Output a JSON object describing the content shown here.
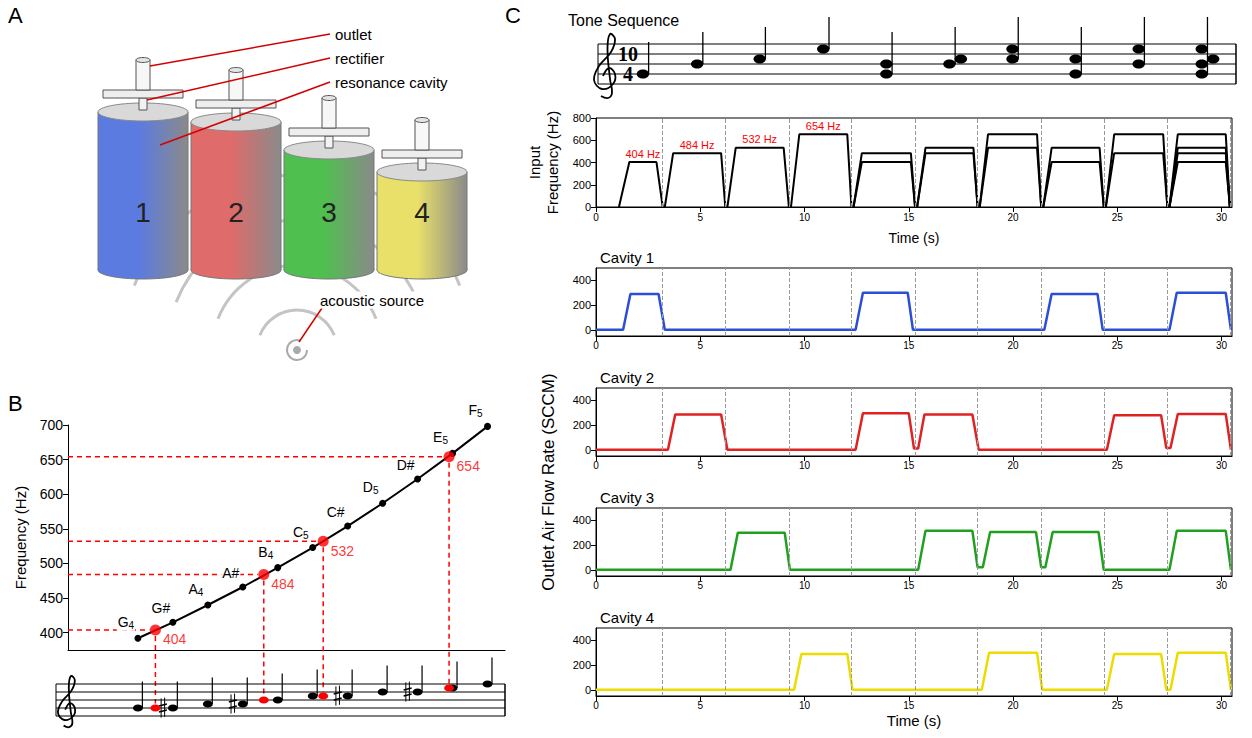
{
  "diagram": {
    "panel": "A",
    "cavities": [
      {
        "label": "1",
        "color": "#5b7be0"
      },
      {
        "label": "2",
        "color": "#e06b6b"
      },
      {
        "label": "3",
        "color": "#4fbf4f"
      },
      {
        "label": "4",
        "color": "#e9e06a"
      }
    ],
    "callouts": [
      "outlet",
      "rectifier",
      "resonance cavity"
    ],
    "source": "acoustic source"
  },
  "chart_data": [
    {
      "panel": "B",
      "type": "line",
      "ylabel": "Frequency (Hz)",
      "x": [
        0,
        1,
        2,
        3,
        4,
        5,
        6,
        7,
        8,
        9,
        10
      ],
      "values": [
        392,
        415,
        440,
        466,
        494,
        523,
        554,
        587,
        622,
        659,
        698
      ],
      "point_labels": [
        "G4",
        "G#",
        "A4",
        "A#",
        "B4",
        "C5",
        "C#",
        "D5",
        "D#",
        "E5",
        "F5"
      ],
      "color": "#000000",
      "marker": "circle",
      "highlights": {
        "x": [
          0.5,
          3.6,
          5.3,
          8.9
        ],
        "values": [
          404,
          484,
          532,
          654
        ],
        "notes": [
          "G4",
          "B4",
          "C5",
          "E5"
        ],
        "color": "#ff0000",
        "line_style": "dashed",
        "data_labels": true
      },
      "xlim": [
        -2,
        10.5
      ],
      "ylim": [
        375,
        700
      ],
      "yticks": [
        400,
        450,
        500,
        550,
        600,
        650,
        700
      ],
      "tick_labels": "y",
      "grid": false
    },
    {
      "panel": "C",
      "type": "line",
      "title": "Tone Sequence",
      "time_signature": [
        "10",
        "4"
      ],
      "xlabel": "Time (s)",
      "xlim": [
        0,
        30.5
      ],
      "xticks": [
        0,
        5,
        10,
        15,
        20,
        25,
        30
      ],
      "segment_boundaries": [
        3.2,
        6.2,
        9.25,
        12.25,
        15.3,
        18.3,
        21.35,
        24.35,
        27.4,
        30.4
      ],
      "grid": false,
      "input": {
        "ylabel": "Input Frequency (Hz)",
        "ylim": [
          0,
          800
        ],
        "yticks": [
          0,
          200,
          400,
          600,
          800
        ],
        "color": "#000000",
        "annotations": {
          "color": "#ff0000",
          "texts": [
            "404 Hz",
            "484 Hz",
            "532 Hz",
            "654 Hz"
          ]
        },
        "tones": [
          {
            "notes": [
              "G4"
            ],
            "x": [
              1.1,
              1.6,
              2.9,
              3.2
            ],
            "values": [
              [
                0,
                404,
                404,
                0
              ]
            ]
          },
          {
            "notes": [
              "B4"
            ],
            "x": [
              3.3,
              3.7,
              6.0,
              6.2
            ],
            "values": [
              [
                0,
                484,
                484,
                0
              ]
            ]
          },
          {
            "notes": [
              "C5"
            ],
            "x": [
              6.3,
              6.7,
              9.0,
              9.25
            ],
            "values": [
              [
                0,
                532,
                532,
                0
              ]
            ]
          },
          {
            "notes": [
              "E5"
            ],
            "x": [
              9.35,
              9.75,
              12.05,
              12.25
            ],
            "values": [
              [
                0,
                654,
                654,
                0
              ]
            ]
          },
          {
            "notes": [
              "G4",
              "B4"
            ],
            "x": [
              12.35,
              12.75,
              15.1,
              15.3
            ],
            "values": [
              [
                0,
                404,
                404,
                0
              ],
              [
                0,
                484,
                484,
                0
              ]
            ]
          },
          {
            "notes": [
              "B4",
              "C5"
            ],
            "x": [
              15.4,
              15.8,
              18.1,
              18.3
            ],
            "values": [
              [
                0,
                484,
                484,
                0
              ],
              [
                0,
                532,
                532,
                0
              ]
            ]
          },
          {
            "notes": [
              "C5",
              "E5"
            ],
            "x": [
              18.4,
              18.8,
              21.15,
              21.35
            ],
            "values": [
              [
                0,
                532,
                532,
                0
              ],
              [
                0,
                654,
                654,
                0
              ]
            ]
          },
          {
            "notes": [
              "G4",
              "C5"
            ],
            "x": [
              21.45,
              21.85,
              24.15,
              24.35
            ],
            "values": [
              [
                0,
                404,
                404,
                0
              ],
              [
                0,
                532,
                532,
                0
              ]
            ]
          },
          {
            "notes": [
              "B4",
              "E5"
            ],
            "x": [
              24.45,
              24.85,
              27.2,
              27.4
            ],
            "values": [
              [
                0,
                484,
                484,
                0
              ],
              [
                0,
                654,
                654,
                0
              ]
            ]
          },
          {
            "notes": [
              "G4",
              "B4",
              "C5",
              "E5"
            ],
            "x": [
              27.5,
              27.9,
              30.2,
              30.4
            ],
            "values": [
              [
                0,
                404,
                404,
                0
              ],
              [
                0,
                484,
                484,
                0
              ],
              [
                0,
                532,
                532,
                0
              ],
              [
                0,
                654,
                654,
                0
              ]
            ]
          }
        ]
      },
      "flow": {
        "ylabel": "Outlet Air Flow Rate (SCCM)",
        "ylim": [
          -50,
          500
        ],
        "yticks": [
          0,
          200,
          400
        ],
        "series": [
          {
            "name": "Cavity 1",
            "color": "#2a4fd6",
            "x": [
              0,
              1.3,
              1.65,
              3.0,
              3.3,
              12.45,
              12.8,
              14.95,
              15.2,
              21.5,
              21.85,
              24.05,
              24.3,
              27.5,
              27.85,
              30.2,
              30.45
            ],
            "values": [
              0,
              0,
              290,
              290,
              0,
              0,
              300,
              300,
              0,
              0,
              290,
              290,
              0,
              0,
              300,
              300,
              0
            ]
          },
          {
            "name": "Cavity 2",
            "color": "#e02222",
            "x": [
              0,
              3.45,
              3.8,
              6.0,
              6.3,
              12.45,
              12.8,
              15.0,
              15.25,
              15.45,
              15.75,
              18.05,
              18.35,
              24.5,
              24.85,
              27.1,
              27.35,
              27.55,
              27.9,
              30.2,
              30.45
            ],
            "values": [
              0,
              0,
              285,
              285,
              0,
              0,
              295,
              295,
              10,
              10,
              285,
              285,
              0,
              0,
              280,
              280,
              15,
              15,
              290,
              290,
              0
            ]
          },
          {
            "name": "Cavity 3",
            "color": "#1fa01f",
            "x": [
              0,
              6.45,
              6.8,
              9.05,
              9.3,
              15.45,
              15.8,
              18.05,
              18.3,
              18.55,
              18.9,
              21.1,
              21.35,
              21.55,
              21.9,
              24.1,
              24.35,
              27.5,
              27.85,
              30.2,
              30.45
            ],
            "values": [
              0,
              0,
              300,
              300,
              0,
              0,
              315,
              315,
              20,
              20,
              305,
              305,
              20,
              20,
              305,
              305,
              0,
              0,
              315,
              315,
              0
            ]
          },
          {
            "name": "Cavity 4",
            "color": "#ecdc00",
            "x": [
              0,
              9.5,
              9.85,
              12.05,
              12.3,
              18.5,
              18.85,
              21.15,
              21.4,
              24.5,
              24.85,
              27.1,
              27.35,
              27.55,
              27.9,
              30.2,
              30.45
            ],
            "values": [
              0,
              0,
              290,
              290,
              0,
              0,
              300,
              300,
              0,
              0,
              290,
              290,
              0,
              0,
              300,
              300,
              0
            ]
          }
        ]
      }
    }
  ]
}
